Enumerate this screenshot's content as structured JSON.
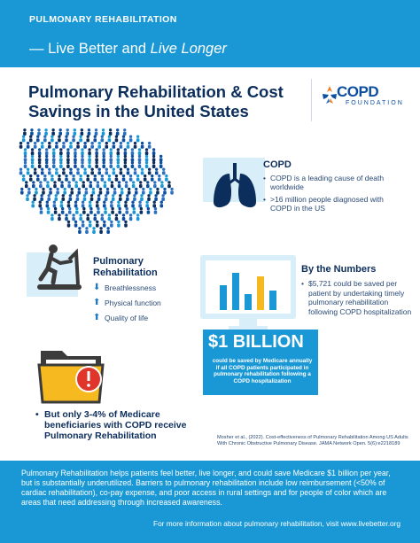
{
  "header": {
    "kicker": "PULMONARY REHABILITATION",
    "tagline_prefix": "— Live Better and ",
    "tagline_italic": "Live Longer"
  },
  "title": {
    "line1": "Pulmonary Rehabilitation & Cost",
    "line2": "Savings in the United States"
  },
  "logo": {
    "name": "COPD",
    "sub": "FOUNDATION",
    "brand_color": "#0c4ea0",
    "accent_color": "#f47b20"
  },
  "copd": {
    "title": "COPD",
    "bullets": [
      "COPD is a leading cause of death worldwide",
      ">16 million people diagnosed with COPD in the US"
    ]
  },
  "rehab": {
    "title": "Pulmonary Rehabilitation",
    "items": [
      {
        "direction": "down",
        "label": "Breathlessness"
      },
      {
        "direction": "up",
        "label": "Physical function"
      },
      {
        "direction": "up",
        "label": "Quality of life"
      }
    ]
  },
  "numbers": {
    "title": "By the Numbers",
    "bullet": "$5,721 could be saved per patient by undertaking timely pulmonary rehabilitation following COPD hospitalization"
  },
  "billion": {
    "amount": "$1 BILLION",
    "text": "could be saved by Medicare annually if all COPD patients participated in pulmonary rehabilitation following a COPD hospitalization"
  },
  "medicare": {
    "text": "But only 3-4% of Medicare beneficiaries with COPD receive Pulmonary Rehabilitation"
  },
  "citation": {
    "text": "Mosher et al., (2022). Cost-effectiveness of Pulmonary Rehabilitation Among US Adults With Chronic Obstructive Pulmonary Disease. JAMA Network Open. 5(6):e2218189"
  },
  "footer": {
    "body": "Pulmonary Rehabilitation helps patients feel better, live longer, and could save Medicare $1 billion per year, but is substantially underutilized. Barriers to pulmonary rehabilitation include low reimbursement (<50% of cardiac rehabilitation), co-pay expense, and poor access in rural settings and for people of color which are areas that need addressing through increased awareness.",
    "link": "For more information about pulmonary rehabilitation, visit www.livebetter.org"
  },
  "colors": {
    "primary_blue": "#1a98d5",
    "navy": "#0c2e5c",
    "light_blue": "#d8eef9",
    "alert_red": "#e0352b",
    "folder_yellow": "#f6b91f"
  },
  "icons": [
    "usa-people-map-icon",
    "lungs-icon",
    "treadmill-icon",
    "arrow-down-icon",
    "arrow-up-icon",
    "monitor-bar-chart-icon",
    "folder-alert-icon",
    "copd-foundation-logo-icon"
  ]
}
